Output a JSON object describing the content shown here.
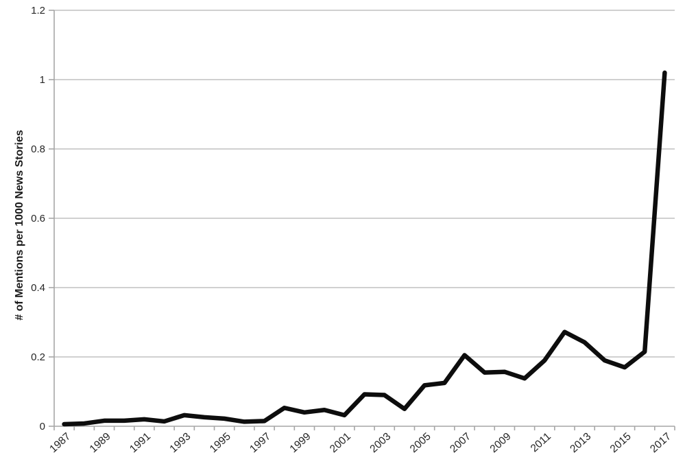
{
  "chart_data": {
    "type": "line",
    "title": "",
    "xlabel": "",
    "ylabel": "# of Mentions per 1000 News Stories",
    "ylim": [
      0,
      1.2
    ],
    "yticks": [
      0,
      0.2,
      0.4,
      0.6,
      0.8,
      1,
      1.2
    ],
    "ytick_labels": [
      "0",
      "0.2",
      "0.4",
      "0.6",
      "0.8",
      "1",
      "1.2"
    ],
    "categories": [
      1987,
      1988,
      1989,
      1990,
      1991,
      1992,
      1993,
      1994,
      1995,
      1996,
      1997,
      1998,
      1999,
      2000,
      2001,
      2002,
      2003,
      2004,
      2005,
      2006,
      2007,
      2008,
      2009,
      2010,
      2011,
      2012,
      2013,
      2014,
      2015,
      2016,
      2017
    ],
    "xtick_labels": [
      "1987",
      "1989",
      "1991",
      "1993",
      "1995",
      "1997",
      "1999",
      "2001",
      "2003",
      "2005",
      "2007",
      "2009",
      "2011",
      "2013",
      "2015",
      "2017"
    ],
    "values": [
      0.006,
      0.008,
      0.016,
      0.016,
      0.02,
      0.014,
      0.032,
      0.026,
      0.022,
      0.013,
      0.015,
      0.053,
      0.04,
      0.047,
      0.032,
      0.092,
      0.09,
      0.05,
      0.118,
      0.125,
      0.205,
      0.155,
      0.157,
      0.138,
      0.19,
      0.272,
      0.242,
      0.19,
      0.17,
      0.215,
      1.02
    ],
    "grid": true,
    "legend": false,
    "colors": {
      "series": "#0d0d0d",
      "grid": "#b3b3b3",
      "axis": "#a6a6a6",
      "tick_text": "#262626",
      "background": "#ffffff"
    }
  }
}
